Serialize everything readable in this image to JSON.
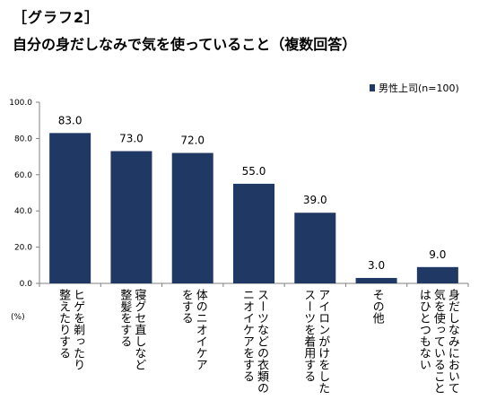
{
  "header": {
    "tag": "［グラフ2］",
    "title": "自分の身だしなみで気を使っていること（複数回答）"
  },
  "chart_data": {
    "type": "bar",
    "title": "自分の身だしなみで気を使っていること（複数回答）",
    "unit_label": "(%)",
    "ylim": [
      0,
      100
    ],
    "yticks": [
      "0.0",
      "20.0",
      "40.0",
      "60.0",
      "80.0",
      "100.0"
    ],
    "categories": [
      "ヒゲを剃ったり\n整えたりする",
      "寝グセ直しなど\n整髪をする",
      "体のニオイケア\nをする",
      "スーツなどの衣類の\nニオイケアをする",
      "アイロンがけをした\nスーツを着用する",
      "その他",
      "身だしなみにおいて\n気を使っていること\nはひとつもない"
    ],
    "series": [
      {
        "name": "男性上司(n=100)",
        "values": [
          83.0,
          73.0,
          72.0,
          55.0,
          39.0,
          3.0,
          9.0
        ],
        "value_labels": [
          "83.0",
          "73.0",
          "72.0",
          "55.0",
          "39.0",
          "3.0",
          "9.0"
        ]
      }
    ],
    "legend_position": "top-right",
    "grid": false,
    "colors": {
      "bar": "#1f3864",
      "axis": "#808080"
    }
  }
}
